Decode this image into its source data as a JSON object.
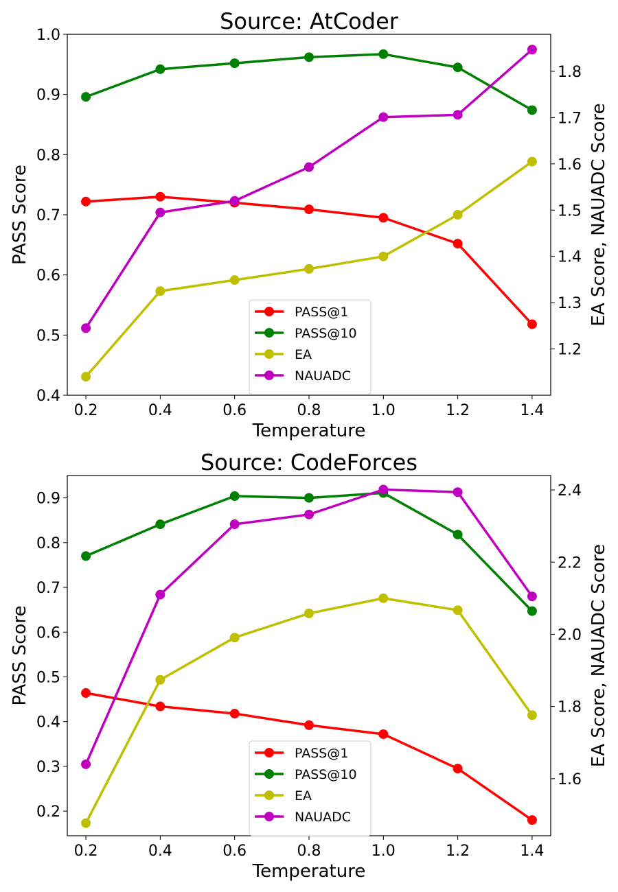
{
  "chart_data": [
    {
      "type": "line",
      "title": "Source: AtCoder",
      "xlabel": "Temperature",
      "ylabel_left": "PASS Score",
      "ylabel_right": "EA Score, NAUADC Score",
      "x": [
        0.2,
        0.4,
        0.6,
        0.8,
        1.0,
        1.2,
        1.4
      ],
      "xticks": [
        "0.2",
        "0.4",
        "0.6",
        "0.8",
        "1.0",
        "1.2",
        "1.4"
      ],
      "ylim_left": [
        0.4,
        1.0
      ],
      "yticks_left": [
        "0.4",
        "0.5",
        "0.6",
        "0.7",
        "0.8",
        "0.9",
        "1.0"
      ],
      "ylim_right": [
        1.1,
        1.88
      ],
      "yticks_right": [
        "1.2",
        "1.3",
        "1.4",
        "1.5",
        "1.6",
        "1.7",
        "1.8"
      ],
      "legend_position": "lower-center",
      "series": [
        {
          "name": "PASS@1",
          "axis": "left",
          "color": "#ff0000",
          "values": [
            0.722,
            0.73,
            0.72,
            0.709,
            0.695,
            0.652,
            0.518
          ]
        },
        {
          "name": "PASS@10",
          "axis": "left",
          "color": "#008000",
          "values": [
            0.896,
            0.942,
            0.952,
            0.962,
            0.967,
            0.945,
            0.874
          ]
        },
        {
          "name": "EA",
          "axis": "right",
          "color": "#bfbf00",
          "values": [
            1.14,
            1.325,
            1.349,
            1.373,
            1.4,
            1.49,
            1.605
          ]
        },
        {
          "name": "NAUADC",
          "axis": "right",
          "color": "#bf00bf",
          "values": [
            1.245,
            1.495,
            1.52,
            1.593,
            1.701,
            1.706,
            1.847
          ]
        }
      ]
    },
    {
      "type": "line",
      "title": "Source: CodeForces",
      "xlabel": "Temperature",
      "ylabel_left": "PASS Score",
      "ylabel_right": "EA Score, NAUADC Score",
      "x": [
        0.2,
        0.4,
        0.6,
        0.8,
        1.0,
        1.2,
        1.4
      ],
      "xticks": [
        "0.2",
        "0.4",
        "0.6",
        "0.8",
        "1.0",
        "1.2",
        "1.4"
      ],
      "ylim_left": [
        0.145,
        0.95
      ],
      "yticks_left": [
        "0.2",
        "0.3",
        "0.4",
        "0.5",
        "0.6",
        "0.7",
        "0.8",
        "0.9"
      ],
      "ylim_right": [
        1.442,
        2.44
      ],
      "yticks_right": [
        "1.6",
        "1.8",
        "2.0",
        "2.2",
        "2.4"
      ],
      "legend_position": "lower-center",
      "series": [
        {
          "name": "PASS@1",
          "axis": "left",
          "color": "#ff0000",
          "values": [
            0.464,
            0.434,
            0.418,
            0.392,
            0.372,
            0.295,
            0.18
          ]
        },
        {
          "name": "PASS@10",
          "axis": "left",
          "color": "#008000",
          "values": [
            0.77,
            0.841,
            0.904,
            0.9,
            0.911,
            0.818,
            0.647
          ]
        },
        {
          "name": "EA",
          "axis": "right",
          "color": "#bfbf00",
          "values": [
            1.477,
            1.874,
            1.991,
            2.058,
            2.1,
            2.067,
            1.776
          ]
        },
        {
          "name": "NAUADC",
          "axis": "right",
          "color": "#bf00bf",
          "values": [
            1.64,
            2.11,
            2.305,
            2.332,
            2.401,
            2.394,
            2.105
          ]
        }
      ]
    }
  ]
}
